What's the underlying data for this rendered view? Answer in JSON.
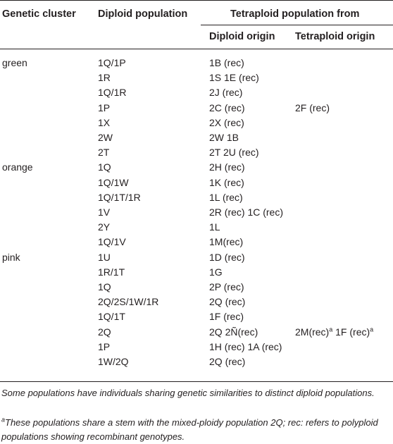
{
  "header": {
    "cluster": "Genetic cluster",
    "diploid": "Diploid population",
    "tetraploid": "Tetraploid population from",
    "diploid_origin": "Diploid origin",
    "tetraploid_origin": "Tetraploid origin"
  },
  "rows": [
    {
      "cluster": "green",
      "diploid": "1Q/1P",
      "dorigin": "1B (rec)",
      "torigin": ""
    },
    {
      "cluster": "",
      "diploid": "1R",
      "dorigin": "1S 1E (rec)",
      "torigin": ""
    },
    {
      "cluster": "",
      "diploid": "1Q/1R",
      "dorigin": "2J (rec)",
      "torigin": ""
    },
    {
      "cluster": "",
      "diploid": "1P",
      "dorigin": "2C (rec)",
      "torigin": "2F (rec)"
    },
    {
      "cluster": "",
      "diploid": "1X",
      "dorigin": "2X (rec)",
      "torigin": ""
    },
    {
      "cluster": "",
      "diploid": "2W",
      "dorigin": "2W 1B",
      "torigin": ""
    },
    {
      "cluster": "",
      "diploid": "2T",
      "dorigin": "2T 2U (rec)",
      "torigin": ""
    },
    {
      "cluster": "orange",
      "diploid": "1Q",
      "dorigin": "2H (rec)",
      "torigin": ""
    },
    {
      "cluster": "",
      "diploid": "1Q/1W",
      "dorigin": "1K (rec)",
      "torigin": ""
    },
    {
      "cluster": "",
      "diploid": "1Q/1T/1R",
      "dorigin": "1L (rec)",
      "torigin": ""
    },
    {
      "cluster": "",
      "diploid": "1V",
      "dorigin": "2R (rec) 1C (rec)",
      "torigin": ""
    },
    {
      "cluster": "",
      "diploid": "2Y",
      "dorigin": "1L",
      "torigin": ""
    },
    {
      "cluster": "",
      "diploid": "1Q/1V",
      "dorigin": "1M(rec)",
      "torigin": ""
    },
    {
      "cluster": "pink",
      "diploid": "1U",
      "dorigin": "1D (rec)",
      "torigin": ""
    },
    {
      "cluster": "",
      "diploid": "1R/1T",
      "dorigin": "1G",
      "torigin": ""
    },
    {
      "cluster": "",
      "diploid": "1Q",
      "dorigin": "2P (rec)",
      "torigin": ""
    },
    {
      "cluster": "",
      "diploid": "2Q/2S/1W/1R",
      "dorigin": "2Q (rec)",
      "torigin": ""
    },
    {
      "cluster": "",
      "diploid": "1Q/1T",
      "dorigin": "1F (rec)",
      "torigin": ""
    },
    {
      "cluster": "",
      "diploid": "2Q",
      "dorigin": "2Q 2Ñ(rec)",
      "torigin": "",
      "torigin_parts": [
        "2M(rec)",
        "a",
        " 1F (rec)",
        "a"
      ]
    },
    {
      "cluster": "",
      "diploid": "1P",
      "dorigin": "1H (rec) 1A (rec)",
      "torigin": ""
    },
    {
      "cluster": "",
      "diploid": "1W/2Q",
      "dorigin": "2Q (rec)",
      "torigin": ""
    }
  ],
  "footnotes": {
    "note1": "Some populations have individuals sharing genetic similarities to distinct diploid populations.",
    "note2_marker": "a",
    "note2": "These populations share a stem with the mixed-ploidy population 2Q; rec: refers to polyploid populations showing recombinant genotypes."
  }
}
